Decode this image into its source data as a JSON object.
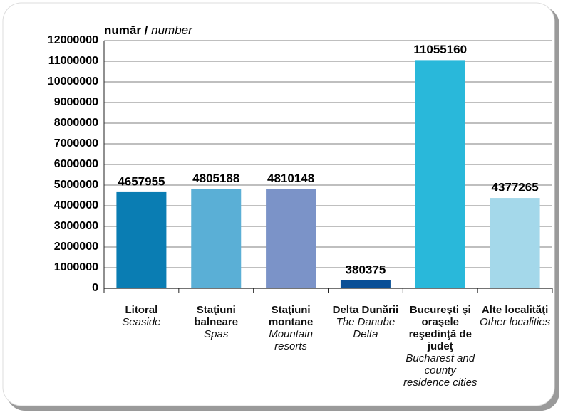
{
  "chart_data": {
    "type": "bar",
    "y_label": "număr /",
    "y_label_en": "number",
    "categories": [
      "Litoral",
      "Staţiuni balneare",
      "Staţiuni montane",
      "Delta Dunării",
      "Bucureşti şi oraşele reşedinţă de judeţ",
      "Alte localităţi"
    ],
    "categories_en": [
      "Seaside",
      "Spas",
      "Mountain resorts",
      "The Danube Delta",
      "Bucharest and county residence cities",
      "Other localities"
    ],
    "values": [
      4657955,
      4805188,
      4810148,
      380375,
      11055160,
      4377265
    ],
    "colors": [
      "#0a7db3",
      "#5aafd6",
      "#7b93c8",
      "#0a4f96",
      "#29b8da",
      "#a4d8ea"
    ],
    "ylim": [
      0,
      12000000
    ],
    "yticks": [
      0,
      1000000,
      2000000,
      3000000,
      4000000,
      5000000,
      6000000,
      7000000,
      8000000,
      9000000,
      10000000,
      11000000,
      12000000
    ],
    "grid": true
  }
}
